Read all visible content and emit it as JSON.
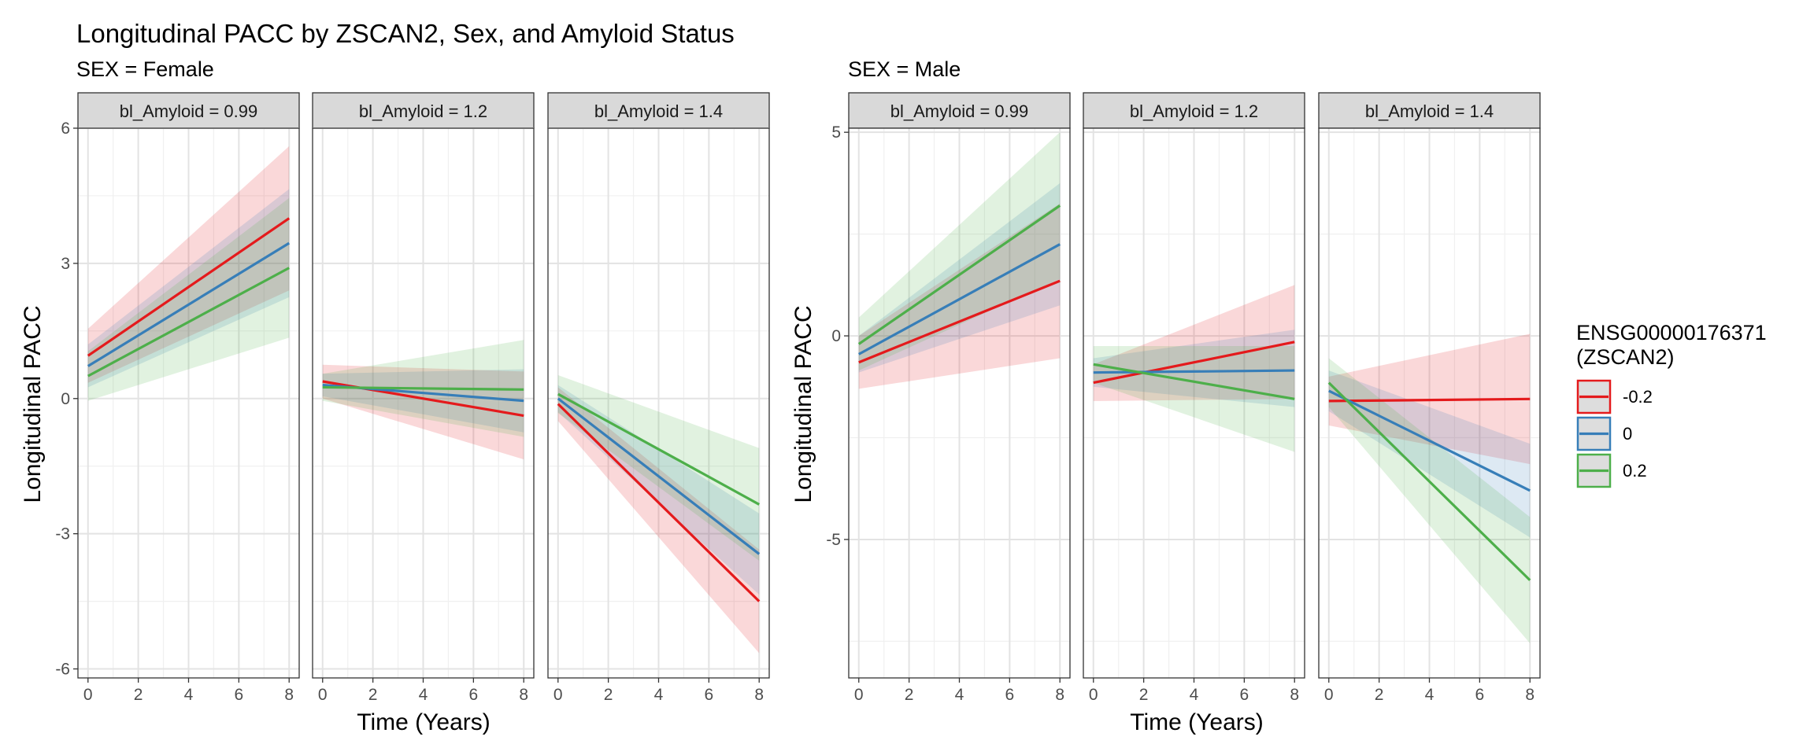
{
  "chart_data": {
    "type": "line",
    "title": "Longitudinal PACC by ZSCAN2, Sex, and Amyloid Status",
    "xlabel": "Time (Years)",
    "ylabel": "Longitudinal PACC",
    "x_ticks": [
      0,
      2,
      4,
      6,
      8
    ],
    "xlim": [
      -0.4,
      8.4
    ],
    "legend": {
      "title_line1": "ENSG00000176371",
      "title_line2": "(ZSCAN2)",
      "position": "right",
      "entries": [
        {
          "label": "-0.2",
          "color": "#E41A1C"
        },
        {
          "label": "0",
          "color": "#377EB8"
        },
        {
          "label": "0.2",
          "color": "#4DAF4A"
        }
      ]
    },
    "groups": [
      {
        "subtitle": "SEX = Female",
        "ylim": [
          -6.2,
          6.0
        ],
        "y_ticks": [
          6,
          3,
          0,
          -3,
          -6
        ],
        "y_tick_labels": [
          "6",
          "3",
          "0",
          "-3",
          "-6"
        ],
        "facets": [
          {
            "strip": "bl_Amyloid = 0.99",
            "series": [
              {
                "color": "#E41A1C",
                "y": [
                  0.95,
                  4.0
                ],
                "lo": [
                  0.35,
                  2.4
                ],
                "hi": [
                  1.55,
                  5.6
                ]
              },
              {
                "color": "#377EB8",
                "y": [
                  0.72,
                  3.45
                ],
                "lo": [
                  0.25,
                  2.25
                ],
                "hi": [
                  1.2,
                  4.65
                ]
              },
              {
                "color": "#4DAF4A",
                "y": [
                  0.5,
                  2.9
                ],
                "lo": [
                  -0.05,
                  1.35
                ],
                "hi": [
                  1.05,
                  4.45
                ]
              }
            ]
          },
          {
            "strip": "bl_Amyloid = 1.2",
            "series": [
              {
                "color": "#E41A1C",
                "y": [
                  0.38,
                  -0.38
                ],
                "lo": [
                  0.0,
                  -1.35
                ],
                "hi": [
                  0.75,
                  0.6
                ]
              },
              {
                "color": "#377EB8",
                "y": [
                  0.3,
                  -0.05
                ],
                "lo": [
                  0.05,
                  -0.75
                ],
                "hi": [
                  0.55,
                  0.65
                ]
              },
              {
                "color": "#4DAF4A",
                "y": [
                  0.25,
                  0.2
                ],
                "lo": [
                  -0.05,
                  -0.85
                ],
                "hi": [
                  0.55,
                  1.3
                ]
              }
            ]
          },
          {
            "strip": "bl_Amyloid = 1.4",
            "series": [
              {
                "color": "#E41A1C",
                "y": [
                  -0.12,
                  -4.5
                ],
                "lo": [
                  -0.5,
                  -5.65
                ],
                "hi": [
                  0.25,
                  -3.35
                ]
              },
              {
                "color": "#377EB8",
                "y": [
                  0.0,
                  -3.45
                ],
                "lo": [
                  -0.3,
                  -4.35
                ],
                "hi": [
                  0.3,
                  -2.55
                ]
              },
              {
                "color": "#4DAF4A",
                "y": [
                  0.1,
                  -2.35
                ],
                "lo": [
                  -0.32,
                  -3.6
                ],
                "hi": [
                  0.52,
                  -1.1
                ]
              }
            ]
          }
        ]
      },
      {
        "subtitle": "SEX = Male",
        "ylim": [
          -8.4,
          5.1
        ],
        "y_ticks": [
          5,
          0,
          -5
        ],
        "y_tick_labels": [
          "5",
          "0",
          "-5"
        ],
        "facets": [
          {
            "strip": "bl_Amyloid = 0.99",
            "series": [
              {
                "color": "#E41A1C",
                "y": [
                  -0.65,
                  1.35
                ],
                "lo": [
                  -1.3,
                  -0.55
                ],
                "hi": [
                  0.0,
                  3.25
                ]
              },
              {
                "color": "#377EB8",
                "y": [
                  -0.45,
                  2.25
                ],
                "lo": [
                  -0.9,
                  0.75
                ],
                "hi": [
                  0.0,
                  3.75
                ]
              },
              {
                "color": "#4DAF4A",
                "y": [
                  -0.2,
                  3.2
                ],
                "lo": [
                  -0.85,
                  1.4
                ],
                "hi": [
                  0.45,
                  5.0
                ]
              }
            ]
          },
          {
            "strip": "bl_Amyloid = 1.2",
            "series": [
              {
                "color": "#E41A1C",
                "y": [
                  -1.15,
                  -0.15
                ],
                "lo": [
                  -1.6,
                  -1.55
                ],
                "hi": [
                  -0.7,
                  1.25
                ]
              },
              {
                "color": "#377EB8",
                "y": [
                  -0.9,
                  -0.85
                ],
                "lo": [
                  -1.25,
                  -1.75
                ],
                "hi": [
                  -0.55,
                  0.15
                ]
              },
              {
                "color": "#4DAF4A",
                "y": [
                  -0.7,
                  -1.55
                ],
                "lo": [
                  -1.15,
                  -2.85
                ],
                "hi": [
                  -0.25,
                  -0.25
                ]
              }
            ]
          },
          {
            "strip": "bl_Amyloid = 1.4",
            "series": [
              {
                "color": "#E41A1C",
                "y": [
                  -1.6,
                  -1.55
                ],
                "lo": [
                  -2.2,
                  -3.15
                ],
                "hi": [
                  -1.0,
                  0.05
                ]
              },
              {
                "color": "#377EB8",
                "y": [
                  -1.35,
                  -3.8
                ],
                "lo": [
                  -1.85,
                  -4.95
                ],
                "hi": [
                  -0.85,
                  -2.65
                ]
              },
              {
                "color": "#4DAF4A",
                "y": [
                  -1.15,
                  -6.0
                ],
                "lo": [
                  -1.75,
                  -7.55
                ],
                "hi": [
                  -0.55,
                  -4.45
                ]
              }
            ]
          }
        ]
      }
    ]
  }
}
